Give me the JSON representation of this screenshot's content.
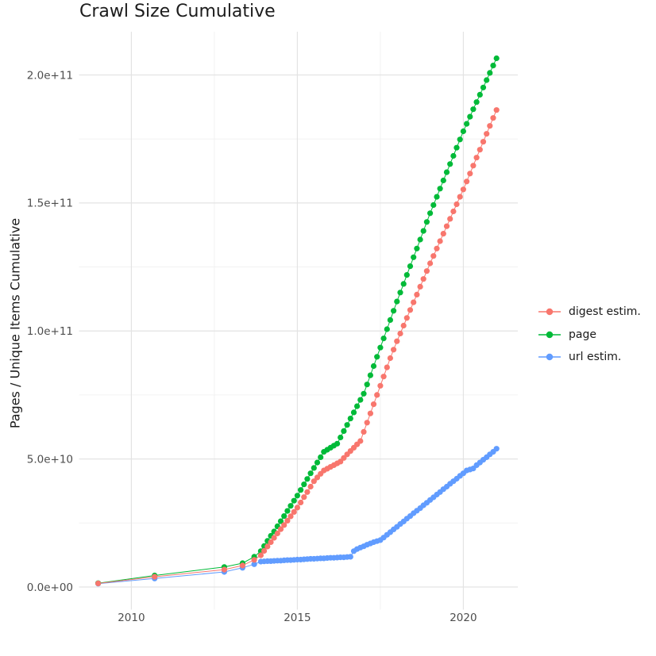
{
  "title": "Crawl Size Cumulative",
  "chart_data": {
    "type": "scatter",
    "title": "Crawl Size Cumulative",
    "xlabel": "",
    "ylabel": "Pages / Unique Items Cumulative",
    "x_tick_labels": [
      "2010",
      "2015",
      "2020"
    ],
    "x_tick_values": [
      2010,
      2015,
      2020
    ],
    "x_minor_values": [
      2012.5,
      2017.5
    ],
    "y_tick_labels": [
      "0.0e+00",
      "5.0e+10",
      "1.0e+11",
      "1.5e+11",
      "2.0e+11"
    ],
    "y_tick_values_e9": [
      0,
      50,
      100,
      150,
      200
    ],
    "y_minor_values_e9": [
      25,
      75,
      125,
      175
    ],
    "xlim": [
      2008.44,
      2021.6
    ],
    "ylim_e9": [
      -9.1,
      216.8
    ],
    "values_unit": "pages, expressed in 1e9 (billions)",
    "grid": true,
    "legend_position": "right",
    "grid_major_color": "#e3e3e3",
    "grid_minor_color": "#f0f0f0",
    "marker_radius": 3.6,
    "series": [
      {
        "id": "digest",
        "name": "digest estim.",
        "color": "#F8766D",
        "points": [
          [
            2009,
            1.4
          ],
          [
            2010.7,
            4
          ],
          [
            2012.8,
            6.8
          ],
          [
            2013.35,
            8.4
          ],
          [
            2013.7,
            10.6
          ],
          [
            2013.9,
            12.4
          ],
          [
            2014,
            14.1
          ],
          [
            2014.1,
            15.8
          ],
          [
            2014.2,
            17.5
          ],
          [
            2014.3,
            19.2
          ],
          [
            2014.4,
            20.9
          ],
          [
            2014.5,
            22.6
          ],
          [
            2014.6,
            24.2
          ],
          [
            2014.7,
            25.9
          ],
          [
            2014.8,
            27.6
          ],
          [
            2014.9,
            29.3
          ],
          [
            2015,
            31
          ],
          [
            2015.1,
            33
          ],
          [
            2015.2,
            35.1
          ],
          [
            2015.3,
            37.1
          ],
          [
            2015.4,
            39.2
          ],
          [
            2015.5,
            41.3
          ],
          [
            2015.6,
            42.8
          ],
          [
            2015.7,
            44.2
          ],
          [
            2015.8,
            45.5
          ],
          [
            2015.9,
            46.2
          ],
          [
            2016,
            46.9
          ],
          [
            2016.1,
            47.6
          ],
          [
            2016.2,
            48.3
          ],
          [
            2016.3,
            49
          ],
          [
            2016.4,
            50.4
          ],
          [
            2016.5,
            51.8
          ],
          [
            2016.6,
            53.1
          ],
          [
            2016.7,
            54.4
          ],
          [
            2016.8,
            55.7
          ],
          [
            2016.9,
            57
          ],
          [
            2017,
            60.6
          ],
          [
            2017.1,
            64.2
          ],
          [
            2017.2,
            67.8
          ],
          [
            2017.3,
            71.4
          ],
          [
            2017.4,
            75
          ],
          [
            2017.5,
            78.6
          ],
          [
            2017.6,
            82.2
          ],
          [
            2017.7,
            85.8
          ],
          [
            2017.8,
            89.4
          ],
          [
            2017.9,
            92.7
          ],
          [
            2018,
            96
          ],
          [
            2018.1,
            99
          ],
          [
            2018.2,
            102.1
          ],
          [
            2018.3,
            105.1
          ],
          [
            2018.4,
            108.2
          ],
          [
            2018.5,
            111.2
          ],
          [
            2018.6,
            114.2
          ],
          [
            2018.7,
            117.3
          ],
          [
            2018.8,
            120.3
          ],
          [
            2018.9,
            123.4
          ],
          [
            2019,
            126.4
          ],
          [
            2019.1,
            129.3
          ],
          [
            2019.2,
            132.2
          ],
          [
            2019.3,
            135.1
          ],
          [
            2019.4,
            138
          ],
          [
            2019.5,
            140.9
          ],
          [
            2019.6,
            143.8
          ],
          [
            2019.7,
            146.7
          ],
          [
            2019.8,
            149.5
          ],
          [
            2019.9,
            152.4
          ],
          [
            2020,
            155.3
          ],
          [
            2020.1,
            158.4
          ],
          [
            2020.2,
            161.5
          ],
          [
            2020.3,
            164.6
          ],
          [
            2020.4,
            167.7
          ],
          [
            2020.5,
            170.8
          ],
          [
            2020.6,
            173.9
          ],
          [
            2020.7,
            177
          ],
          [
            2020.8,
            180.1
          ],
          [
            2020.9,
            183.2
          ],
          [
            2021,
            186.3
          ]
        ]
      },
      {
        "id": "page",
        "name": "page",
        "color": "#00BA38",
        "points": [
          [
            2009,
            1.5
          ],
          [
            2010.7,
            4.5
          ],
          [
            2012.8,
            7.8
          ],
          [
            2013.35,
            9.3
          ],
          [
            2013.7,
            11.8
          ],
          [
            2013.9,
            14
          ],
          [
            2014,
            16
          ],
          [
            2014.1,
            18
          ],
          [
            2014.2,
            20
          ],
          [
            2014.3,
            21.7
          ],
          [
            2014.4,
            23.7
          ],
          [
            2014.5,
            25.7
          ],
          [
            2014.6,
            27.7
          ],
          [
            2014.7,
            29.7
          ],
          [
            2014.8,
            31.7
          ],
          [
            2014.9,
            33.7
          ],
          [
            2015,
            35.7
          ],
          [
            2015.1,
            37.9
          ],
          [
            2015.2,
            40.1
          ],
          [
            2015.3,
            42.2
          ],
          [
            2015.4,
            44.4
          ],
          [
            2015.5,
            46.5
          ],
          [
            2015.6,
            48.6
          ],
          [
            2015.7,
            50.7
          ],
          [
            2015.8,
            52.8
          ],
          [
            2015.9,
            53.6
          ],
          [
            2016,
            54.4
          ],
          [
            2016.1,
            55.2
          ],
          [
            2016.2,
            56
          ],
          [
            2016.3,
            58.4
          ],
          [
            2016.4,
            60.9
          ],
          [
            2016.5,
            63.3
          ],
          [
            2016.6,
            65.8
          ],
          [
            2016.7,
            68.2
          ],
          [
            2016.8,
            70.6
          ],
          [
            2016.9,
            73.1
          ],
          [
            2017,
            75.5
          ],
          [
            2017.1,
            79.1
          ],
          [
            2017.2,
            82.7
          ],
          [
            2017.3,
            86.3
          ],
          [
            2017.4,
            89.9
          ],
          [
            2017.5,
            93.5
          ],
          [
            2017.6,
            97.1
          ],
          [
            2017.7,
            100.7
          ],
          [
            2017.8,
            104.3
          ],
          [
            2017.9,
            107.9
          ],
          [
            2018,
            111.5
          ],
          [
            2018.1,
            115
          ],
          [
            2018.2,
            118.4
          ],
          [
            2018.3,
            121.9
          ],
          [
            2018.4,
            125.3
          ],
          [
            2018.5,
            128.8
          ],
          [
            2018.6,
            132.2
          ],
          [
            2018.7,
            135.7
          ],
          [
            2018.8,
            139.1
          ],
          [
            2018.9,
            142.6
          ],
          [
            2019,
            146
          ],
          [
            2019.1,
            149.2
          ],
          [
            2019.2,
            152.4
          ],
          [
            2019.3,
            155.6
          ],
          [
            2019.4,
            158.8
          ],
          [
            2019.5,
            162
          ],
          [
            2019.6,
            165.2
          ],
          [
            2019.7,
            168.4
          ],
          [
            2019.8,
            171.6
          ],
          [
            2019.9,
            174.8
          ],
          [
            2020,
            178
          ],
          [
            2020.1,
            180.9
          ],
          [
            2020.2,
            183.7
          ],
          [
            2020.3,
            186.6
          ],
          [
            2020.4,
            189.4
          ],
          [
            2020.5,
            192.3
          ],
          [
            2020.6,
            195.1
          ],
          [
            2020.7,
            198
          ],
          [
            2020.8,
            200.8
          ],
          [
            2020.9,
            203.7
          ],
          [
            2021,
            206.5
          ]
        ]
      },
      {
        "id": "url",
        "name": "url estim.",
        "color": "#619CFF",
        "points": [
          [
            2009,
            1.3
          ],
          [
            2010.7,
            3.3
          ],
          [
            2012.8,
            5.9
          ],
          [
            2013.35,
            7.5
          ],
          [
            2013.7,
            8.9
          ],
          [
            2013.9,
            9.9
          ],
          [
            2014,
            10
          ],
          [
            2014.1,
            10.1
          ],
          [
            2014.2,
            10.1
          ],
          [
            2014.3,
            10.2
          ],
          [
            2014.4,
            10.3
          ],
          [
            2014.5,
            10.3
          ],
          [
            2014.6,
            10.4
          ],
          [
            2014.7,
            10.5
          ],
          [
            2014.8,
            10.5
          ],
          [
            2014.9,
            10.6
          ],
          [
            2015,
            10.7
          ],
          [
            2015.1,
            10.7
          ],
          [
            2015.2,
            10.8
          ],
          [
            2015.3,
            10.9
          ],
          [
            2015.4,
            11
          ],
          [
            2015.5,
            11
          ],
          [
            2015.6,
            11.1
          ],
          [
            2015.7,
            11.2
          ],
          [
            2015.8,
            11.2
          ],
          [
            2015.9,
            11.3
          ],
          [
            2016,
            11.4
          ],
          [
            2016.1,
            11.4
          ],
          [
            2016.2,
            11.5
          ],
          [
            2016.3,
            11.6
          ],
          [
            2016.4,
            11.6
          ],
          [
            2016.5,
            11.7
          ],
          [
            2016.6,
            11.8
          ],
          [
            2016.7,
            14
          ],
          [
            2016.8,
            14.8
          ],
          [
            2016.9,
            15.4
          ],
          [
            2017,
            15.9
          ],
          [
            2017.1,
            16.5
          ],
          [
            2017.2,
            17
          ],
          [
            2017.3,
            17.5
          ],
          [
            2017.4,
            17.9
          ],
          [
            2017.5,
            18.3
          ],
          [
            2017.6,
            19.3
          ],
          [
            2017.7,
            20.4
          ],
          [
            2017.8,
            21.4
          ],
          [
            2017.9,
            22.5
          ],
          [
            2018,
            23.5
          ],
          [
            2018.1,
            24.6
          ],
          [
            2018.2,
            25.6
          ],
          [
            2018.3,
            26.7
          ],
          [
            2018.4,
            27.7
          ],
          [
            2018.5,
            28.8
          ],
          [
            2018.6,
            29.8
          ],
          [
            2018.7,
            30.8
          ],
          [
            2018.8,
            31.9
          ],
          [
            2018.9,
            32.9
          ],
          [
            2019,
            34
          ],
          [
            2019.1,
            35
          ],
          [
            2019.2,
            36.1
          ],
          [
            2019.3,
            37.1
          ],
          [
            2019.4,
            38.2
          ],
          [
            2019.5,
            39.2
          ],
          [
            2019.6,
            40.3
          ],
          [
            2019.7,
            41.3
          ],
          [
            2019.8,
            42.3
          ],
          [
            2019.9,
            43.4
          ],
          [
            2020,
            44.4
          ],
          [
            2020.1,
            45.5
          ],
          [
            2020.2,
            45.9
          ],
          [
            2020.3,
            46.3
          ],
          [
            2020.4,
            47.6
          ],
          [
            2020.5,
            48.6
          ],
          [
            2020.6,
            49.7
          ],
          [
            2020.7,
            50.7
          ],
          [
            2020.8,
            51.8
          ],
          [
            2020.9,
            52.8
          ],
          [
            2021,
            54
          ]
        ]
      }
    ]
  }
}
